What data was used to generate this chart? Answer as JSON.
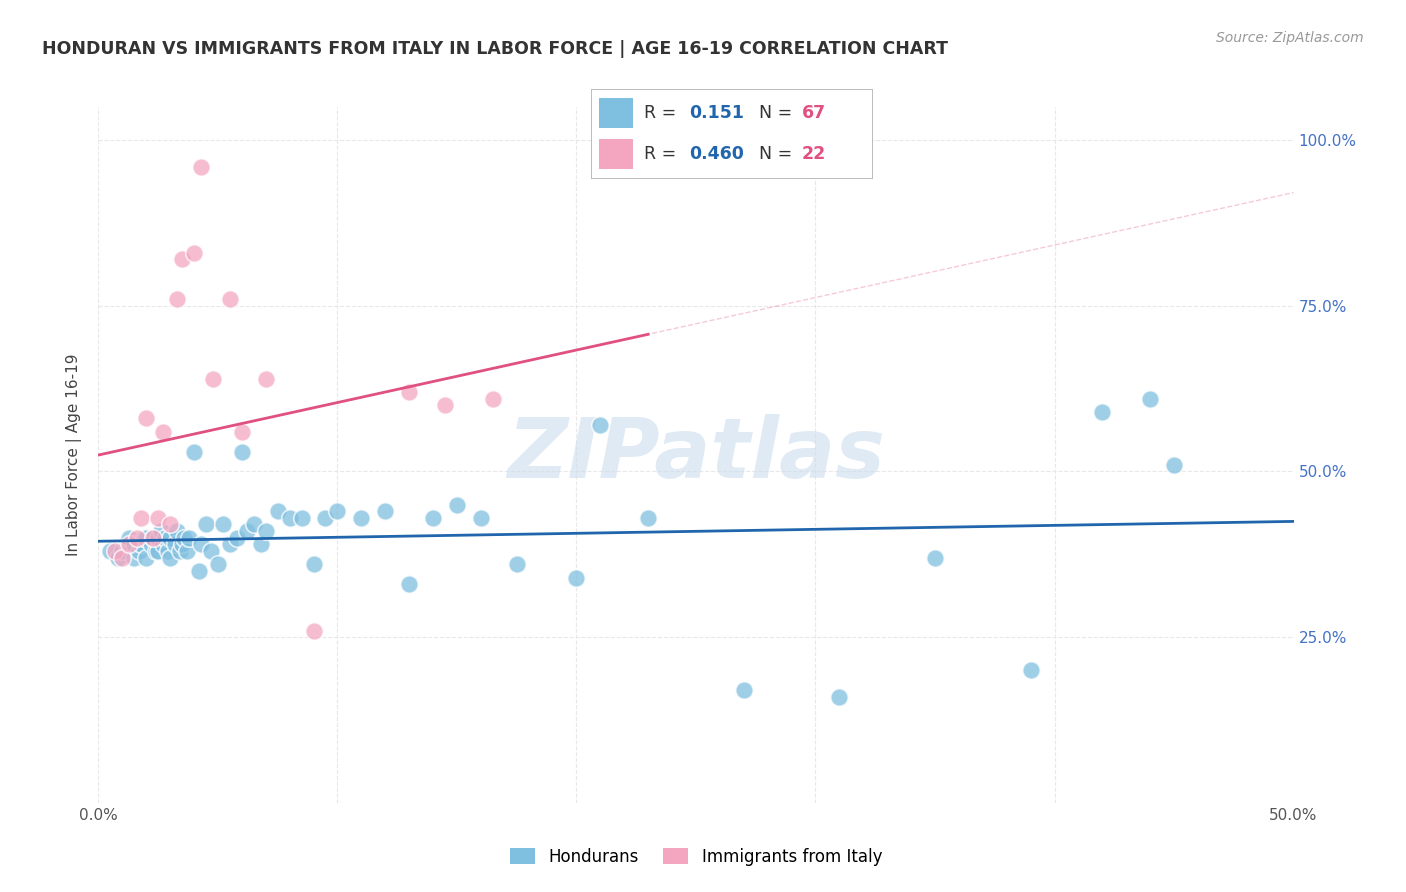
{
  "title": "HONDURAN VS IMMIGRANTS FROM ITALY IN LABOR FORCE | AGE 16-19 CORRELATION CHART",
  "source": "Source: ZipAtlas.com",
  "ylabel": "In Labor Force | Age 16-19",
  "xlim": [
    0.0,
    0.5
  ],
  "ylim": [
    0.0,
    1.05
  ],
  "watermark_text": "ZIPatlas",
  "honduran_color": "#7fbfdf",
  "italian_color": "#f4a6c0",
  "honduran_line_color": "#2166ac",
  "italian_line_color": "#e05080",
  "background_color": "#ffffff",
  "grid_color": "#e8e8e8",
  "honduran_x": [
    0.005,
    0.008,
    0.01,
    0.012,
    0.013,
    0.015,
    0.015,
    0.017,
    0.018,
    0.019,
    0.02,
    0.02,
    0.022,
    0.023,
    0.024,
    0.025,
    0.025,
    0.026,
    0.027,
    0.028,
    0.029,
    0.03,
    0.03,
    0.032,
    0.033,
    0.034,
    0.035,
    0.036,
    0.037,
    0.038,
    0.04,
    0.042,
    0.043,
    0.045,
    0.047,
    0.05,
    0.052,
    0.055,
    0.058,
    0.06,
    0.062,
    0.065,
    0.068,
    0.07,
    0.075,
    0.08,
    0.085,
    0.09,
    0.095,
    0.1,
    0.11,
    0.12,
    0.13,
    0.14,
    0.15,
    0.16,
    0.175,
    0.2,
    0.21,
    0.23,
    0.27,
    0.31,
    0.35,
    0.39,
    0.42,
    0.44,
    0.45
  ],
  "honduran_y": [
    0.38,
    0.37,
    0.38,
    0.39,
    0.4,
    0.37,
    0.39,
    0.38,
    0.39,
    0.4,
    0.37,
    0.4,
    0.39,
    0.4,
    0.38,
    0.38,
    0.4,
    0.41,
    0.39,
    0.4,
    0.38,
    0.37,
    0.4,
    0.39,
    0.41,
    0.38,
    0.39,
    0.4,
    0.38,
    0.4,
    0.53,
    0.35,
    0.39,
    0.42,
    0.38,
    0.36,
    0.42,
    0.39,
    0.4,
    0.53,
    0.41,
    0.42,
    0.39,
    0.41,
    0.44,
    0.43,
    0.43,
    0.36,
    0.43,
    0.44,
    0.43,
    0.44,
    0.33,
    0.43,
    0.45,
    0.43,
    0.36,
    0.34,
    0.57,
    0.43,
    0.17,
    0.16,
    0.37,
    0.2,
    0.59,
    0.61,
    0.51
  ],
  "italian_x": [
    0.007,
    0.01,
    0.013,
    0.016,
    0.018,
    0.02,
    0.023,
    0.025,
    0.027,
    0.03,
    0.033,
    0.035,
    0.04,
    0.043,
    0.048,
    0.055,
    0.06,
    0.07,
    0.09,
    0.13,
    0.145,
    0.165
  ],
  "italian_y": [
    0.38,
    0.37,
    0.39,
    0.4,
    0.43,
    0.58,
    0.4,
    0.43,
    0.56,
    0.42,
    0.76,
    0.82,
    0.83,
    0.96,
    0.64,
    0.76,
    0.56,
    0.64,
    0.26,
    0.62,
    0.6,
    0.61
  ],
  "legend_r1_text": "R =  0.151",
  "legend_n1_text": "N = 67",
  "legend_r2_text": "R = 0.460",
  "legend_n2_text": "N = 22",
  "legend_color_r": "#2166ac",
  "legend_color_n": "#e05080",
  "legend_text_color": "#333333"
}
